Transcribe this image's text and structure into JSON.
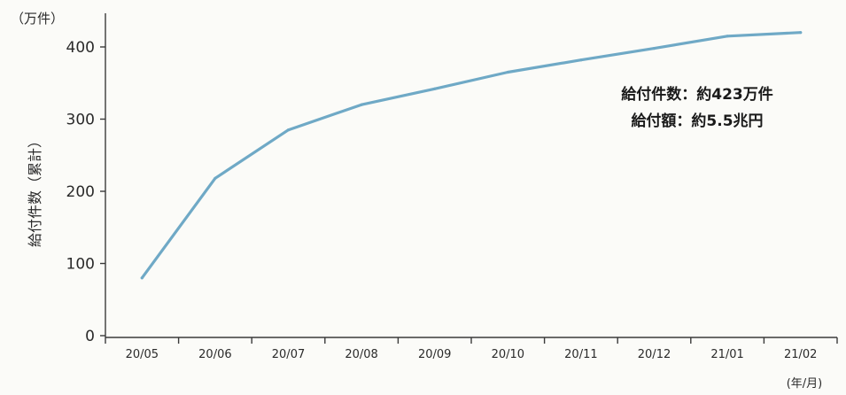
{
  "chart_data": {
    "type": "line",
    "title": "",
    "y_unit_label": "（万件）",
    "ylabel": "給付件数（累計）",
    "xlabel": "(年/月)",
    "ylim": [
      0,
      400
    ],
    "yticks": [
      0,
      100,
      200,
      300,
      400
    ],
    "categories": [
      "20/05",
      "20/06",
      "20/07",
      "20/08",
      "20/09",
      "20/10",
      "20/11",
      "20/12",
      "21/01",
      "21/02"
    ],
    "series": [
      {
        "values": [
          80,
          218,
          285,
          320,
          342,
          365,
          382,
          398,
          415,
          420
        ]
      }
    ],
    "annotations": [
      "給付件数：約423万件",
      "給付額：約5.5兆円"
    ],
    "line_color": "#6fa9c6",
    "grid": false,
    "legend": "none"
  }
}
